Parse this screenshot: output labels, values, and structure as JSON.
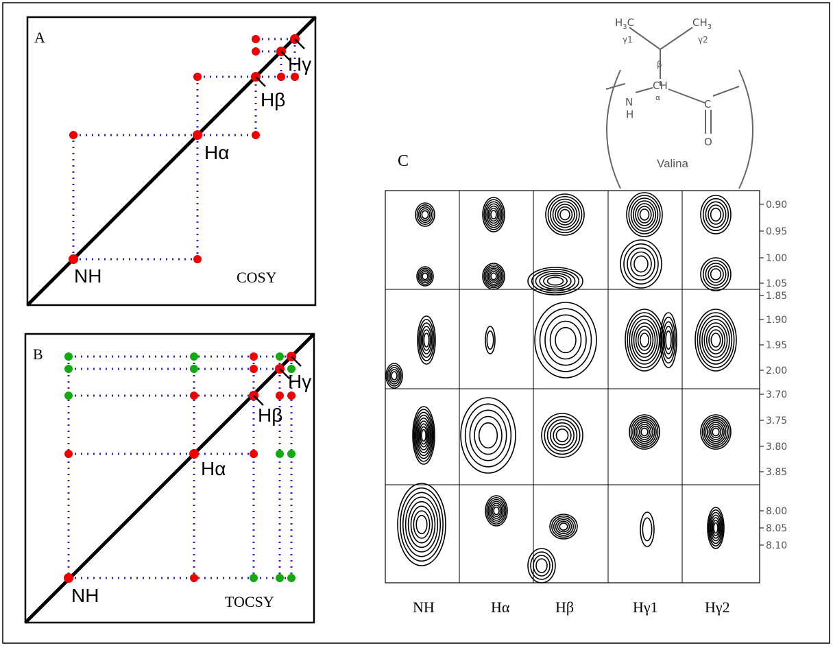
{
  "panels": [
    {
      "label": "A",
      "name": "COSY",
      "peaks": [
        "Hγ",
        "Hβ",
        "Hα",
        "NH"
      ]
    },
    {
      "label": "B",
      "name": "TOCSY",
      "peaks": [
        "Hγ",
        "Hβ",
        "Hα",
        "NH"
      ]
    }
  ],
  "panel_c": {
    "label": "C",
    "columns": [
      "NH",
      "Hα",
      "Hβ",
      "Hγ1",
      "Hγ2"
    ],
    "ticks": [
      [
        "0.90",
        "0.95",
        "1.00",
        "1.05"
      ],
      [
        "1.85",
        "1.90",
        "1.95",
        "2.00"
      ],
      [
        "3.70",
        "3.75",
        "3.80",
        "3.85"
      ],
      [
        "8.00",
        "8.05",
        "8.10"
      ]
    ]
  },
  "structure": {
    "h3c": [
      "H",
      "3",
      "C"
    ],
    "gamma1": "γ1",
    "beta": "β",
    "ch3": [
      "CH",
      "3"
    ],
    "gamma2": "γ2",
    "n": "N",
    "h": "H",
    "ch": "CH",
    "alpha": "α",
    "c": "C",
    "o": "O",
    "name": "Valina"
  }
}
